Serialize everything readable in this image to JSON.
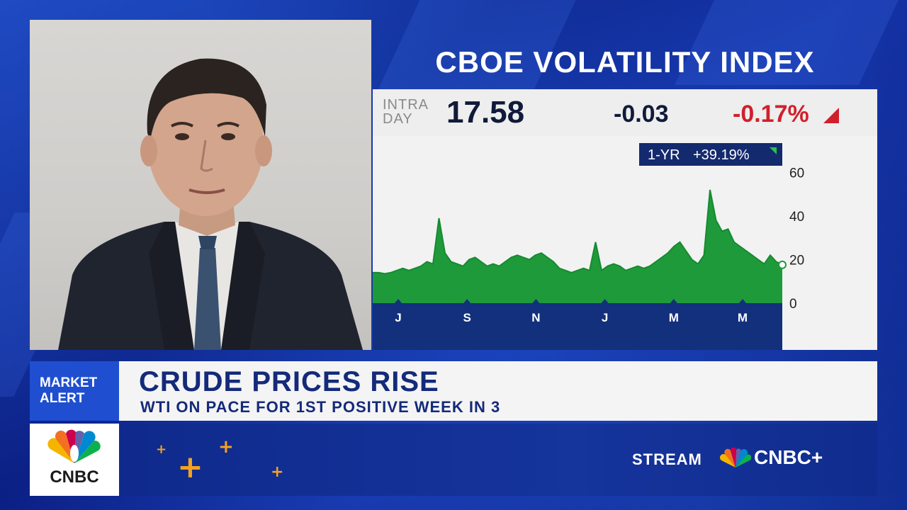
{
  "chart_title": "CBOE VOLATILITY INDEX",
  "quote": {
    "intra_line1": "INTRA",
    "intra_line2": "DAY",
    "last": "17.58",
    "net_change": "-0.03",
    "pct_change": "-0.17%",
    "direction_color": "#d0202c"
  },
  "badge": {
    "period": "1-YR",
    "change": "+39.19%"
  },
  "chart_data": {
    "type": "area",
    "title": "CBOE VOLATILITY INDEX",
    "xlabel": "",
    "ylabel": "",
    "ylim": [
      0,
      65
    ],
    "y_ticks": [
      0,
      20,
      40,
      60
    ],
    "x_tick_labels": [
      "J",
      "S",
      "N",
      "J",
      "M",
      "M"
    ],
    "grid": false,
    "fill_color": "#1f9a3a",
    "series": [
      {
        "values": [
          14,
          14,
          13.5,
          14,
          15,
          16,
          15,
          16,
          17,
          19,
          18,
          39,
          23,
          19,
          18,
          17,
          20,
          21,
          19,
          17,
          18,
          17,
          19,
          21,
          22,
          21,
          20,
          22,
          23,
          21,
          19,
          16,
          15,
          14,
          15,
          16,
          15,
          28,
          15,
          17,
          18,
          17,
          15,
          16,
          17,
          16,
          17,
          19,
          21,
          23,
          26,
          28,
          24,
          20,
          18,
          22,
          52,
          38,
          33,
          34,
          28,
          26,
          24,
          22,
          20,
          18,
          22,
          19,
          17.58
        ]
      }
    ]
  },
  "lower_third": {
    "alert_line1": "MARKET",
    "alert_line2": "ALERT",
    "headline": "CRUDE PRICES RISE",
    "subhead": "WTI ON PACE FOR 1ST POSITIVE WEEK IN 3"
  },
  "network": {
    "logo_text": "CNBC",
    "stream_label": "STREAM",
    "brand_label": "CNBC+"
  },
  "colors": {
    "background": "#0a1f7a",
    "accent_blue": "#1f4fd0",
    "headline_text": "#142a7a",
    "up_green": "#1f9a3a",
    "down_red": "#d0202c"
  }
}
